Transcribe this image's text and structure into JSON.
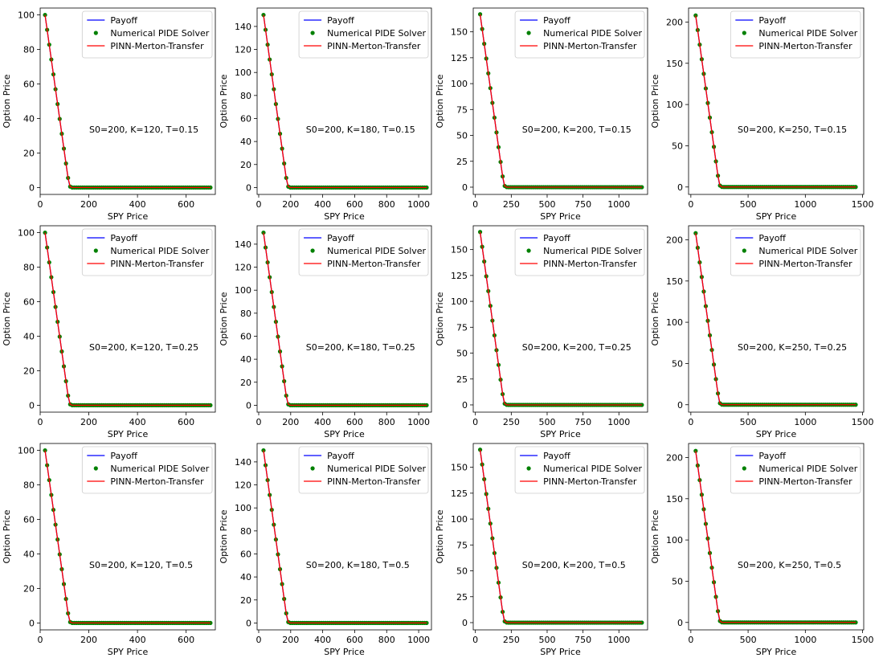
{
  "chart_data": [
    {
      "type": "line",
      "row": 0,
      "col": 0,
      "annotation": "S0=200, K=120, T=0.15",
      "xlabel": "SPY Price",
      "ylabel": "Option Price",
      "K": 120,
      "x_data": [
        20,
        700
      ],
      "xlim": [
        0,
        720
      ],
      "ylim": [
        -4,
        104
      ],
      "xticks": [
        0,
        200,
        400,
        600
      ],
      "yticks": [
        0,
        20,
        40,
        60,
        80,
        100
      ],
      "legend": {
        "placement": "top-right",
        "entries": [
          "Payoff",
          "Numerical PIDE Solver",
          "PINN-Merton-Transfer"
        ]
      },
      "series": [
        {
          "name": "Payoff",
          "color": "#0000ff"
        },
        {
          "name": "Numerical PIDE Solver",
          "color": "#008000"
        },
        {
          "name": "PINN-Merton-Transfer",
          "color": "#ff0000"
        }
      ]
    },
    {
      "type": "line",
      "row": 0,
      "col": 1,
      "annotation": "S0=200, K=180, T=0.15",
      "xlabel": "SPY Price",
      "ylabel": "Option Price",
      "K": 180,
      "x_data": [
        30,
        1050
      ],
      "xlim": [
        -10,
        1080
      ],
      "ylim": [
        -6,
        156
      ],
      "xticks": [
        0,
        200,
        400,
        600,
        800,
        1000
      ],
      "yticks": [
        0,
        20,
        40,
        60,
        80,
        100,
        120,
        140
      ],
      "legend": {
        "placement": "top-right",
        "entries": [
          "Payoff",
          "Numerical PIDE Solver",
          "PINN-Merton-Transfer"
        ]
      },
      "series": [
        {
          "name": "Payoff",
          "color": "#0000ff"
        },
        {
          "name": "Numerical PIDE Solver",
          "color": "#008000"
        },
        {
          "name": "PINN-Merton-Transfer",
          "color": "#ff0000"
        }
      ]
    },
    {
      "type": "line",
      "row": 0,
      "col": 2,
      "annotation": "S0=200, K=200, T=0.15",
      "xlabel": "SPY Price",
      "ylabel": "Option Price",
      "K": 200,
      "x_data": [
        33,
        1160
      ],
      "xlim": [
        -15,
        1200
      ],
      "ylim": [
        -7,
        173
      ],
      "xticks": [
        0,
        250,
        500,
        750,
        1000
      ],
      "yticks": [
        0,
        25,
        50,
        75,
        100,
        125,
        150
      ],
      "legend": {
        "placement": "top-right",
        "entries": [
          "Payoff",
          "Numerical PIDE Solver",
          "PINN-Merton-Transfer"
        ]
      },
      "series": [
        {
          "name": "Payoff",
          "color": "#0000ff"
        },
        {
          "name": "Numerical PIDE Solver",
          "color": "#008000"
        },
        {
          "name": "PINN-Merton-Transfer",
          "color": "#ff0000"
        }
      ]
    },
    {
      "type": "line",
      "row": 0,
      "col": 3,
      "annotation": "S0=200, K=250, T=0.15",
      "xlabel": "SPY Price",
      "ylabel": "Option Price",
      "K": 250,
      "x_data": [
        42,
        1440
      ],
      "xlim": [
        -20,
        1510
      ],
      "ylim": [
        -9,
        217
      ],
      "xticks": [
        0,
        500,
        1000,
        1500
      ],
      "yticks": [
        0,
        50,
        100,
        150,
        200
      ],
      "legend": {
        "placement": "top-right",
        "entries": [
          "Payoff",
          "Numerical PIDE Solver",
          "PINN-Merton-Transfer"
        ]
      },
      "series": [
        {
          "name": "Payoff",
          "color": "#0000ff"
        },
        {
          "name": "Numerical PIDE Solver",
          "color": "#008000"
        },
        {
          "name": "PINN-Merton-Transfer",
          "color": "#ff0000"
        }
      ]
    },
    {
      "type": "line",
      "row": 1,
      "col": 0,
      "annotation": "S0=200, K=120, T=0.25",
      "xlabel": "SPY Price",
      "ylabel": "Option Price",
      "K": 120,
      "x_data": [
        20,
        700
      ],
      "xlim": [
        0,
        720
      ],
      "ylim": [
        -4,
        104
      ],
      "xticks": [
        0,
        200,
        400,
        600
      ],
      "yticks": [
        0,
        20,
        40,
        60,
        80,
        100
      ],
      "legend": {
        "placement": "top-right",
        "entries": [
          "Payoff",
          "Numerical PIDE Solver",
          "PINN-Merton-Transfer"
        ]
      },
      "series": [
        {
          "name": "Payoff",
          "color": "#0000ff"
        },
        {
          "name": "Numerical PIDE Solver",
          "color": "#008000"
        },
        {
          "name": "PINN-Merton-Transfer",
          "color": "#ff0000"
        }
      ]
    },
    {
      "type": "line",
      "row": 1,
      "col": 1,
      "annotation": "S0=200, K=180, T=0.25",
      "xlabel": "SPY Price",
      "ylabel": "Option Price",
      "K": 180,
      "x_data": [
        30,
        1050
      ],
      "xlim": [
        -10,
        1080
      ],
      "ylim": [
        -6,
        156
      ],
      "xticks": [
        0,
        200,
        400,
        600,
        800,
        1000
      ],
      "yticks": [
        0,
        20,
        40,
        60,
        80,
        100,
        120,
        140
      ],
      "legend": {
        "placement": "top-right",
        "entries": [
          "Payoff",
          "Numerical PIDE Solver",
          "PINN-Merton-Transfer"
        ]
      },
      "series": [
        {
          "name": "Payoff",
          "color": "#0000ff"
        },
        {
          "name": "Numerical PIDE Solver",
          "color": "#008000"
        },
        {
          "name": "PINN-Merton-Transfer",
          "color": "#ff0000"
        }
      ]
    },
    {
      "type": "line",
      "row": 1,
      "col": 2,
      "annotation": "S0=200, K=200, T=0.25",
      "xlabel": "SPY Price",
      "ylabel": "Option Price",
      "K": 200,
      "x_data": [
        33,
        1160
      ],
      "xlim": [
        -15,
        1200
      ],
      "ylim": [
        -7,
        173
      ],
      "xticks": [
        0,
        250,
        500,
        750,
        1000
      ],
      "yticks": [
        0,
        25,
        50,
        75,
        100,
        125,
        150
      ],
      "legend": {
        "placement": "top-right",
        "entries": [
          "Payoff",
          "Numerical PIDE Solver",
          "PINN-Merton-Transfer"
        ]
      },
      "series": [
        {
          "name": "Payoff",
          "color": "#0000ff"
        },
        {
          "name": "Numerical PIDE Solver",
          "color": "#008000"
        },
        {
          "name": "PINN-Merton-Transfer",
          "color": "#ff0000"
        }
      ]
    },
    {
      "type": "line",
      "row": 1,
      "col": 3,
      "annotation": "S0=200, K=250, T=0.25",
      "xlabel": "SPY Price",
      "ylabel": "Option Price",
      "K": 250,
      "x_data": [
        42,
        1440
      ],
      "xlim": [
        -20,
        1510
      ],
      "ylim": [
        -9,
        217
      ],
      "xticks": [
        0,
        500,
        1000,
        1500
      ],
      "yticks": [
        0,
        50,
        100,
        150,
        200
      ],
      "legend": {
        "placement": "top-right",
        "entries": [
          "Payoff",
          "Numerical PIDE Solver",
          "PINN-Merton-Transfer"
        ]
      },
      "series": [
        {
          "name": "Payoff",
          "color": "#0000ff"
        },
        {
          "name": "Numerical PIDE Solver",
          "color": "#008000"
        },
        {
          "name": "PINN-Merton-Transfer",
          "color": "#ff0000"
        }
      ]
    },
    {
      "type": "line",
      "row": 2,
      "col": 0,
      "annotation": "S0=200, K=120, T=0.5",
      "xlabel": "SPY Price",
      "ylabel": "Option Price",
      "K": 120,
      "x_data": [
        20,
        700
      ],
      "xlim": [
        0,
        720
      ],
      "ylim": [
        -4,
        104
      ],
      "xticks": [
        0,
        200,
        400,
        600
      ],
      "yticks": [
        0,
        20,
        40,
        60,
        80,
        100
      ],
      "legend": {
        "placement": "top-right",
        "entries": [
          "Payoff",
          "Numerical PIDE Solver",
          "PINN-Merton-Transfer"
        ]
      },
      "series": [
        {
          "name": "Payoff",
          "color": "#0000ff"
        },
        {
          "name": "Numerical PIDE Solver",
          "color": "#008000"
        },
        {
          "name": "PINN-Merton-Transfer",
          "color": "#ff0000"
        }
      ]
    },
    {
      "type": "line",
      "row": 2,
      "col": 1,
      "annotation": "S0=200, K=180, T=0.5",
      "xlabel": "SPY Price",
      "ylabel": "Option Price",
      "K": 180,
      "x_data": [
        30,
        1050
      ],
      "xlim": [
        -10,
        1080
      ],
      "ylim": [
        -6,
        156
      ],
      "xticks": [
        0,
        200,
        400,
        600,
        800,
        1000
      ],
      "yticks": [
        0,
        20,
        40,
        60,
        80,
        100,
        120,
        140
      ],
      "legend": {
        "placement": "top-right",
        "entries": [
          "Payoff",
          "Numerical PIDE Solver",
          "PINN-Merton-Transfer"
        ]
      },
      "series": [
        {
          "name": "Payoff",
          "color": "#0000ff"
        },
        {
          "name": "Numerical PIDE Solver",
          "color": "#008000"
        },
        {
          "name": "PINN-Merton-Transfer",
          "color": "#ff0000"
        }
      ]
    },
    {
      "type": "line",
      "row": 2,
      "col": 2,
      "annotation": "S0=200, K=200, T=0.5",
      "xlabel": "SPY Price",
      "ylabel": "Option Price",
      "K": 200,
      "x_data": [
        33,
        1160
      ],
      "xlim": [
        -15,
        1200
      ],
      "ylim": [
        -7,
        173
      ],
      "xticks": [
        0,
        250,
        500,
        750,
        1000
      ],
      "yticks": [
        0,
        25,
        50,
        75,
        100,
        125,
        150
      ],
      "legend": {
        "placement": "top-right",
        "entries": [
          "Payoff",
          "Numerical PIDE Solver",
          "PINN-Merton-Transfer"
        ]
      },
      "series": [
        {
          "name": "Payoff",
          "color": "#0000ff"
        },
        {
          "name": "Numerical PIDE Solver",
          "color": "#008000"
        },
        {
          "name": "PINN-Merton-Transfer",
          "color": "#ff0000"
        }
      ]
    },
    {
      "type": "line",
      "row": 2,
      "col": 3,
      "annotation": "S0=200, K=250, T=0.5",
      "xlabel": "SPY Price",
      "ylabel": "Option Price",
      "K": 250,
      "x_data": [
        42,
        1440
      ],
      "xlim": [
        -20,
        1510
      ],
      "ylim": [
        -9,
        217
      ],
      "xticks": [
        0,
        500,
        1000,
        1500
      ],
      "yticks": [
        0,
        50,
        100,
        150,
        200
      ],
      "legend": {
        "placement": "top-right",
        "entries": [
          "Payoff",
          "Numerical PIDE Solver",
          "PINN-Merton-Transfer"
        ]
      },
      "series": [
        {
          "name": "Payoff",
          "color": "#0000ff"
        },
        {
          "name": "Numerical PIDE Solver",
          "color": "#008000"
        },
        {
          "name": "PINN-Merton-Transfer",
          "color": "#ff0000"
        }
      ]
    }
  ]
}
